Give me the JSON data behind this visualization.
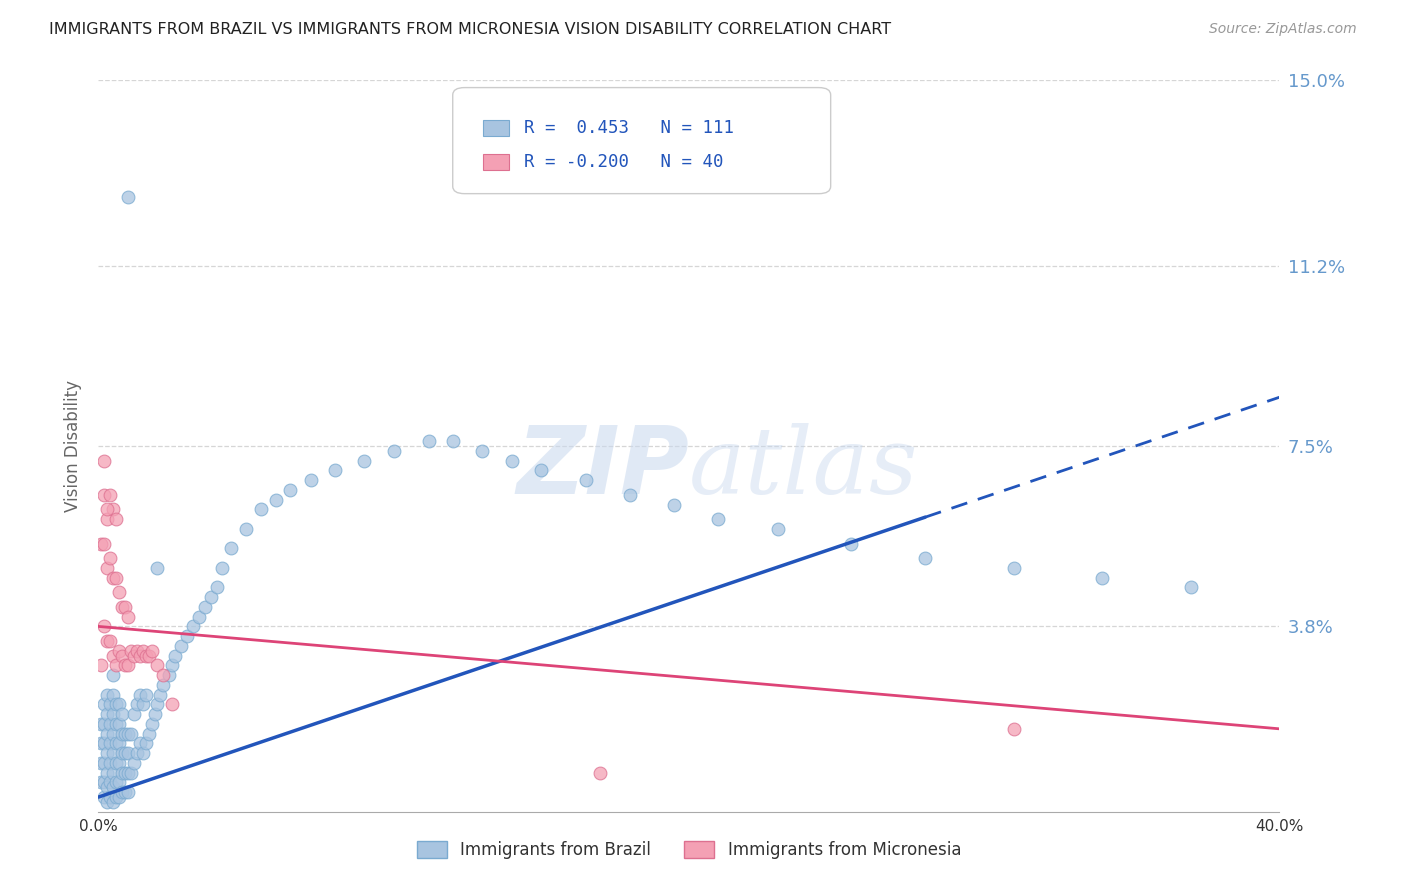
{
  "title": "IMMIGRANTS FROM BRAZIL VS IMMIGRANTS FROM MICRONESIA VISION DISABILITY CORRELATION CHART",
  "source": "Source: ZipAtlas.com",
  "ylabel": "Vision Disability",
  "xlim": [
    0.0,
    0.4
  ],
  "ylim": [
    0.0,
    0.15
  ],
  "ytick_positions": [
    0.038,
    0.075,
    0.112,
    0.15
  ],
  "ytick_labels": [
    "3.8%",
    "7.5%",
    "11.2%",
    "15.0%"
  ],
  "brazil_R": 0.453,
  "brazil_N": 111,
  "micronesia_R": -0.2,
  "micronesia_N": 40,
  "brazil_color": "#a8c4e0",
  "brazil_edge_color": "#7aaad0",
  "brazil_line_color": "#2255bb",
  "micronesia_color": "#f4a0b4",
  "micronesia_edge_color": "#dd7090",
  "micronesia_line_color": "#dd4477",
  "background_color": "#ffffff",
  "grid_color": "#cccccc",
  "title_color": "#222222",
  "axis_label_color": "#666666",
  "right_label_color": "#6699cc",
  "legend_text_color": "#2255bb",
  "watermark_color": "#c8d8ee",
  "brazil_line_solid_end": 0.28,
  "brazil_line_x0": 0.0,
  "brazil_line_y0": 0.003,
  "brazil_line_x1": 0.4,
  "brazil_line_y1": 0.085,
  "micro_line_x0": 0.0,
  "micro_line_y0": 0.038,
  "micro_line_x1": 0.4,
  "micro_line_y1": 0.017,
  "brazil_scatter_x": [
    0.001,
    0.001,
    0.001,
    0.001,
    0.002,
    0.002,
    0.002,
    0.002,
    0.002,
    0.002,
    0.003,
    0.003,
    0.003,
    0.003,
    0.003,
    0.003,
    0.003,
    0.004,
    0.004,
    0.004,
    0.004,
    0.004,
    0.004,
    0.005,
    0.005,
    0.005,
    0.005,
    0.005,
    0.005,
    0.005,
    0.005,
    0.006,
    0.006,
    0.006,
    0.006,
    0.006,
    0.006,
    0.007,
    0.007,
    0.007,
    0.007,
    0.007,
    0.007,
    0.008,
    0.008,
    0.008,
    0.008,
    0.008,
    0.009,
    0.009,
    0.009,
    0.009,
    0.01,
    0.01,
    0.01,
    0.01,
    0.011,
    0.011,
    0.012,
    0.012,
    0.013,
    0.013,
    0.014,
    0.014,
    0.015,
    0.015,
    0.016,
    0.016,
    0.017,
    0.018,
    0.019,
    0.02,
    0.021,
    0.022,
    0.024,
    0.025,
    0.026,
    0.028,
    0.03,
    0.032,
    0.034,
    0.036,
    0.038,
    0.04,
    0.042,
    0.045,
    0.05,
    0.055,
    0.06,
    0.065,
    0.072,
    0.08,
    0.09,
    0.1,
    0.112,
    0.12,
    0.13,
    0.14,
    0.15,
    0.165,
    0.18,
    0.195,
    0.21,
    0.23,
    0.255,
    0.28,
    0.31,
    0.34,
    0.37,
    0.01,
    0.02
  ],
  "brazil_scatter_y": [
    0.006,
    0.01,
    0.014,
    0.018,
    0.003,
    0.006,
    0.01,
    0.014,
    0.018,
    0.022,
    0.002,
    0.005,
    0.008,
    0.012,
    0.016,
    0.02,
    0.024,
    0.003,
    0.006,
    0.01,
    0.014,
    0.018,
    0.022,
    0.002,
    0.005,
    0.008,
    0.012,
    0.016,
    0.02,
    0.024,
    0.028,
    0.003,
    0.006,
    0.01,
    0.014,
    0.018,
    0.022,
    0.003,
    0.006,
    0.01,
    0.014,
    0.018,
    0.022,
    0.004,
    0.008,
    0.012,
    0.016,
    0.02,
    0.004,
    0.008,
    0.012,
    0.016,
    0.004,
    0.008,
    0.012,
    0.016,
    0.008,
    0.016,
    0.01,
    0.02,
    0.012,
    0.022,
    0.014,
    0.024,
    0.012,
    0.022,
    0.014,
    0.024,
    0.016,
    0.018,
    0.02,
    0.022,
    0.024,
    0.026,
    0.028,
    0.03,
    0.032,
    0.034,
    0.036,
    0.038,
    0.04,
    0.042,
    0.044,
    0.046,
    0.05,
    0.054,
    0.058,
    0.062,
    0.064,
    0.066,
    0.068,
    0.07,
    0.072,
    0.074,
    0.076,
    0.076,
    0.074,
    0.072,
    0.07,
    0.068,
    0.065,
    0.063,
    0.06,
    0.058,
    0.055,
    0.052,
    0.05,
    0.048,
    0.046,
    0.126,
    0.05
  ],
  "micronesia_scatter_x": [
    0.001,
    0.001,
    0.002,
    0.002,
    0.002,
    0.003,
    0.003,
    0.003,
    0.004,
    0.004,
    0.004,
    0.005,
    0.005,
    0.005,
    0.006,
    0.006,
    0.006,
    0.007,
    0.007,
    0.008,
    0.008,
    0.009,
    0.009,
    0.01,
    0.01,
    0.011,
    0.012,
    0.013,
    0.014,
    0.015,
    0.016,
    0.017,
    0.018,
    0.02,
    0.022,
    0.025,
    0.17,
    0.31,
    0.002,
    0.003
  ],
  "micronesia_scatter_y": [
    0.03,
    0.055,
    0.038,
    0.055,
    0.065,
    0.035,
    0.05,
    0.06,
    0.035,
    0.052,
    0.065,
    0.032,
    0.048,
    0.062,
    0.03,
    0.048,
    0.06,
    0.033,
    0.045,
    0.032,
    0.042,
    0.03,
    0.042,
    0.03,
    0.04,
    0.033,
    0.032,
    0.033,
    0.032,
    0.033,
    0.032,
    0.032,
    0.033,
    0.03,
    0.028,
    0.022,
    0.008,
    0.017,
    0.072,
    0.062
  ]
}
